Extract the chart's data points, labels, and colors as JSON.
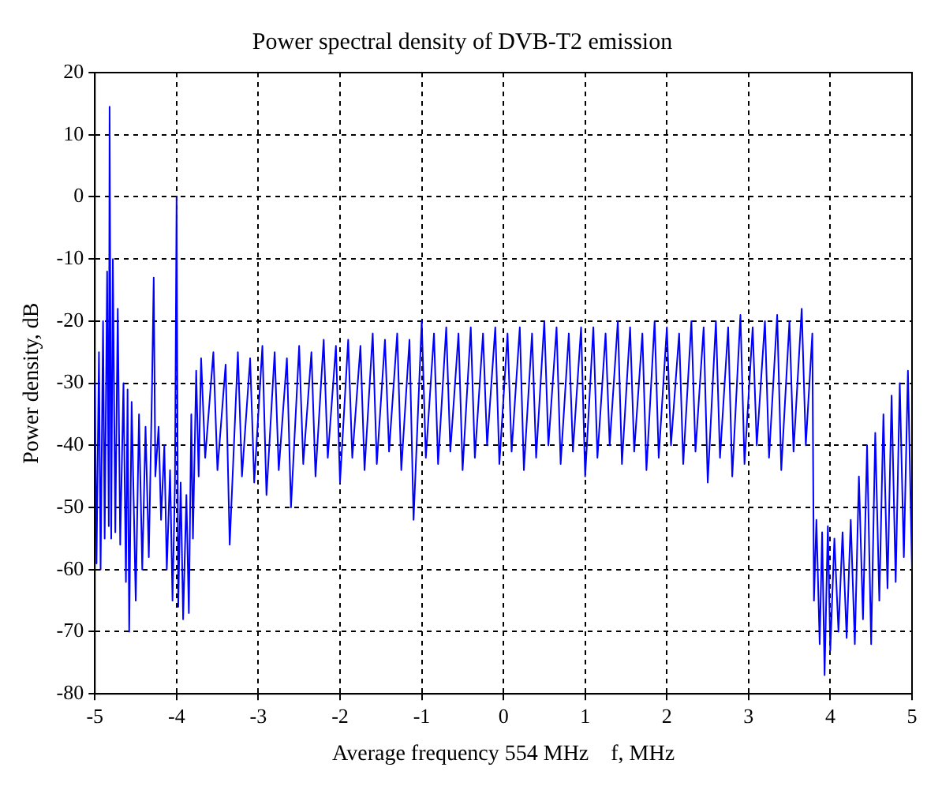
{
  "chart_data": {
    "type": "line",
    "title": "Power spectral density of DVB-T2 emission",
    "xlabel": "Average frequency 554 MHz    f, MHz",
    "ylabel": "Power density, dB",
    "xlim": [
      -5,
      5
    ],
    "xticks": [
      -5,
      -4,
      -3,
      -2,
      -1,
      0,
      1,
      2,
      3,
      4,
      5
    ],
    "ylim": [
      -80,
      20
    ],
    "yticks": [
      -80,
      -70,
      -60,
      -50,
      -40,
      -30,
      -20,
      -10,
      0,
      10,
      20
    ],
    "grid": true,
    "legend": false,
    "marker": "none",
    "line_style": "solid",
    "series": [
      {
        "color": "#0000ff",
        "x": [
          -5,
          -4.98,
          -4.95,
          -4.93,
          -4.9,
          -4.88,
          -4.85,
          -4.83,
          -4.82,
          -4.8,
          -4.78,
          -4.75,
          -4.72,
          -4.69,
          -4.65,
          -4.62,
          -4.6,
          -4.58,
          -4.55,
          -4.5,
          -4.46,
          -4.42,
          -4.38,
          -4.34,
          -4.3,
          -4.28,
          -4.26,
          -4.22,
          -4.19,
          -4.15,
          -4.12,
          -4.08,
          -4.05,
          -4.02,
          -4.0,
          -3.98,
          -3.95,
          -3.92,
          -3.88,
          -3.85,
          -3.82,
          -3.8,
          -3.76,
          -3.73,
          -3.7,
          -3.65,
          -3.55,
          -3.5,
          -3.4,
          -3.35,
          -3.25,
          -3.2,
          -3.1,
          -3.05,
          -2.95,
          -2.9,
          -2.8,
          -2.75,
          -2.65,
          -2.6,
          -2.5,
          -2.45,
          -2.35,
          -2.3,
          -2.2,
          -2.15,
          -2.05,
          -2.0,
          -1.9,
          -1.85,
          -1.75,
          -1.7,
          -1.6,
          -1.55,
          -1.45,
          -1.4,
          -1.3,
          -1.25,
          -1.15,
          -1.1,
          -1.0,
          -0.95,
          -0.85,
          -0.8,
          -0.7,
          -0.65,
          -0.55,
          -0.5,
          -0.4,
          -0.35,
          -0.25,
          -0.2,
          -0.1,
          -0.05,
          0.05,
          0.1,
          0.2,
          0.25,
          0.35,
          0.4,
          0.5,
          0.55,
          0.65,
          0.7,
          0.8,
          0.85,
          0.95,
          1.0,
          1.1,
          1.15,
          1.25,
          1.3,
          1.4,
          1.45,
          1.55,
          1.6,
          1.7,
          1.75,
          1.85,
          1.9,
          2.0,
          2.05,
          2.15,
          2.2,
          2.3,
          2.35,
          2.45,
          2.5,
          2.6,
          2.65,
          2.75,
          2.8,
          2.9,
          2.95,
          3.05,
          3.1,
          3.2,
          3.25,
          3.35,
          3.4,
          3.5,
          3.55,
          3.65,
          3.7,
          3.78,
          3.8,
          3.83,
          3.87,
          3.9,
          3.93,
          3.97,
          4.0,
          4.05,
          4.1,
          4.15,
          4.2,
          4.25,
          4.3,
          4.35,
          4.4,
          4.45,
          4.5,
          4.55,
          4.6,
          4.65,
          4.7,
          4.75,
          4.8,
          4.85,
          4.9,
          4.95,
          5.0
        ],
        "values": [
          -30,
          -59,
          -25,
          -60,
          -20,
          -55,
          -12,
          -53,
          14.5,
          -55,
          -10,
          -54,
          -18,
          -56,
          -30,
          -62,
          -31,
          -70,
          -33,
          -65,
          -35,
          -60,
          -37,
          -58,
          -30,
          -13,
          -45,
          -37,
          -52,
          -40,
          -60,
          -44,
          -65,
          -46,
          0,
          -66,
          -46,
          -68,
          -48,
          -67,
          -35,
          -55,
          -28,
          -45,
          -26,
          -42,
          -25,
          -44,
          -27,
          -56,
          -25,
          -45,
          -26,
          -46,
          -24,
          -48,
          -25,
          -44,
          -26,
          -50,
          -24,
          -43,
          -25,
          -45,
          -23,
          -42,
          -24,
          -46,
          -23,
          -42,
          -24,
          -44,
          -22,
          -43,
          -23,
          -41,
          -22,
          -44,
          -23,
          -52,
          -20,
          -42,
          -22,
          -43,
          -21,
          -41,
          -22,
          -44,
          -21,
          -42,
          -22,
          -40,
          -21,
          -43,
          -22,
          -41,
          -21,
          -44,
          -22,
          -42,
          -20,
          -40,
          -21,
          -43,
          -22,
          -41,
          -21,
          -45,
          -21,
          -42,
          -22,
          -40,
          -20,
          -43,
          -21,
          -41,
          -22,
          -44,
          -20,
          -42,
          -21,
          -40,
          -22,
          -43,
          -20,
          -41,
          -21,
          -46,
          -20,
          -42,
          -21,
          -45,
          -19,
          -43,
          -21,
          -40,
          -20,
          -42,
          -19,
          -44,
          -20,
          -41,
          -18,
          -40,
          -22,
          -65,
          -52,
          -72,
          -54,
          -77,
          -53,
          -73,
          -55,
          -70,
          -54,
          -71,
          -52,
          -72,
          -45,
          -68,
          -40,
          -72,
          -38,
          -65,
          -35,
          -63,
          -32,
          -62,
          -30,
          -58,
          -28,
          -60
        ]
      }
    ]
  }
}
